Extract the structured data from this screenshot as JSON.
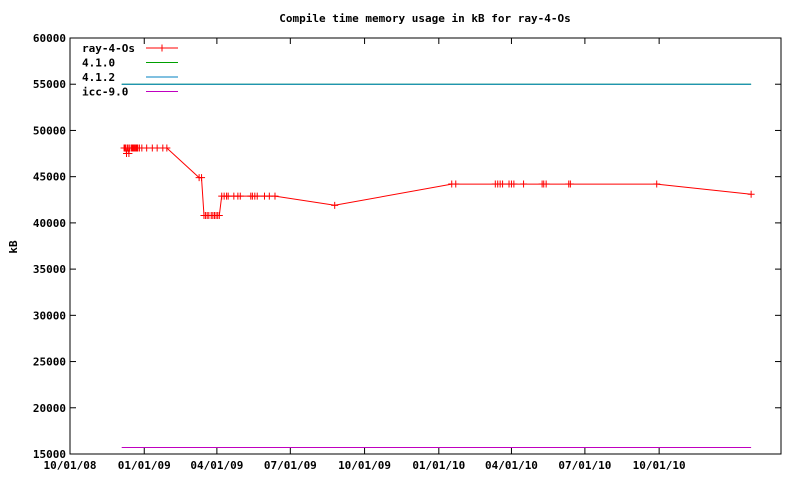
{
  "chart_data": {
    "type": "line",
    "title": "Compile time memory usage in kB for ray-4-Os",
    "xlabel": "",
    "ylabel": "kB",
    "xlim": [
      "2008-10-01",
      "2011-03-01"
    ],
    "ylim": [
      15000,
      60000
    ],
    "yticks": [
      15000,
      20000,
      25000,
      30000,
      35000,
      40000,
      45000,
      50000,
      55000,
      60000
    ],
    "xticks": [
      {
        "date": "2008-10-01",
        "label": "10/01/08"
      },
      {
        "date": "2009-01-01",
        "label": "01/01/09"
      },
      {
        "date": "2009-04-01",
        "label": "04/01/09"
      },
      {
        "date": "2009-07-01",
        "label": "07/01/09"
      },
      {
        "date": "2009-10-01",
        "label": "10/01/09"
      },
      {
        "date": "2010-01-01",
        "label": "01/01/10"
      },
      {
        "date": "2010-04-01",
        "label": "04/01/10"
      },
      {
        "date": "2010-07-01",
        "label": "07/01/10"
      },
      {
        "date": "2010-10-01",
        "label": "10/01/10"
      }
    ],
    "grid": false,
    "legend_position": "top-left",
    "series": [
      {
        "name": "ray-4-Os",
        "color": "#ff0000",
        "marker": "plus",
        "points": [
          [
            "2008-12-07",
            48100
          ],
          [
            "2008-12-08",
            48100
          ],
          [
            "2008-12-09",
            48100
          ],
          [
            "2008-12-10",
            47500
          ],
          [
            "2008-12-11",
            48100
          ],
          [
            "2008-12-12",
            48100
          ],
          [
            "2008-12-13",
            47500
          ],
          [
            "2008-12-14",
            48100
          ],
          [
            "2008-12-16",
            48100
          ],
          [
            "2008-12-17",
            48100
          ],
          [
            "2008-12-18",
            48100
          ],
          [
            "2008-12-19",
            48100
          ],
          [
            "2008-12-20",
            48100
          ],
          [
            "2008-12-21",
            48100
          ],
          [
            "2008-12-22",
            48100
          ],
          [
            "2008-12-23",
            48100
          ],
          [
            "2008-12-24",
            48100
          ],
          [
            "2008-12-26",
            48100
          ],
          [
            "2008-12-29",
            48100
          ],
          [
            "2009-01-04",
            48100
          ],
          [
            "2009-01-11",
            48100
          ],
          [
            "2009-01-17",
            48100
          ],
          [
            "2009-01-24",
            48100
          ],
          [
            "2009-01-29",
            48100
          ],
          [
            "2009-03-10",
            44900
          ],
          [
            "2009-03-13",
            44900
          ],
          [
            "2009-03-16",
            40800
          ],
          [
            "2009-03-18",
            40800
          ],
          [
            "2009-03-20",
            40800
          ],
          [
            "2009-03-22",
            40800
          ],
          [
            "2009-03-25",
            40800
          ],
          [
            "2009-03-27",
            40800
          ],
          [
            "2009-03-29",
            40800
          ],
          [
            "2009-03-31",
            40800
          ],
          [
            "2009-04-02",
            40800
          ],
          [
            "2009-04-04",
            40800
          ],
          [
            "2009-04-07",
            42900
          ],
          [
            "2009-04-10",
            42900
          ],
          [
            "2009-04-13",
            42900
          ],
          [
            "2009-04-15",
            42900
          ],
          [
            "2009-04-22",
            42900
          ],
          [
            "2009-04-27",
            42900
          ],
          [
            "2009-04-30",
            42900
          ],
          [
            "2009-05-13",
            42900
          ],
          [
            "2009-05-15",
            42900
          ],
          [
            "2009-05-18",
            42900
          ],
          [
            "2009-05-21",
            42900
          ],
          [
            "2009-05-30",
            42900
          ],
          [
            "2009-06-05",
            42900
          ],
          [
            "2009-06-12",
            42900
          ],
          [
            "2009-08-25",
            41900
          ],
          [
            "2010-01-17",
            44200
          ],
          [
            "2010-01-22",
            44200
          ],
          [
            "2010-03-12",
            44200
          ],
          [
            "2010-03-15",
            44200
          ],
          [
            "2010-03-18",
            44200
          ],
          [
            "2010-03-21",
            44200
          ],
          [
            "2010-03-29",
            44200
          ],
          [
            "2010-04-01",
            44200
          ],
          [
            "2010-04-04",
            44200
          ],
          [
            "2010-04-16",
            44200
          ],
          [
            "2010-05-09",
            44200
          ],
          [
            "2010-05-11",
            44200
          ],
          [
            "2010-05-14",
            44200
          ],
          [
            "2010-06-11",
            44200
          ],
          [
            "2010-06-13",
            44200
          ],
          [
            "2010-09-28",
            44200
          ],
          [
            "2011-01-23",
            43100
          ]
        ]
      },
      {
        "name": "4.1.0",
        "color": "#00a000",
        "marker": "none",
        "points": [
          [
            "2008-12-04",
            55000
          ],
          [
            "2011-01-23",
            55000
          ]
        ]
      },
      {
        "name": "4.1.2",
        "color": "#0080c0",
        "marker": "none",
        "points": [
          [
            "2008-12-04",
            55000
          ],
          [
            "2011-01-23",
            55000
          ]
        ]
      },
      {
        "name": "icc-9.0",
        "color": "#c000c0",
        "marker": "none",
        "points": [
          [
            "2008-12-04",
            15700
          ],
          [
            "2011-01-23",
            15700
          ]
        ]
      }
    ]
  }
}
